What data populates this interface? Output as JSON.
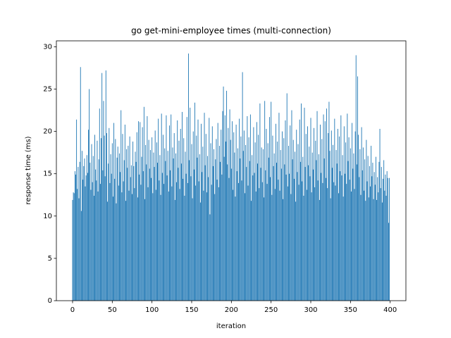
{
  "chart_data": {
    "type": "bar",
    "title": "go get-mini-employee times (multi-connection)",
    "x_label": "iteration",
    "y_label": "response time (ms)",
    "color": "#1f77b4",
    "bar_width": 0.8,
    "grid": false,
    "xlim": [
      -20.4,
      419.8
    ],
    "xticks": [
      0,
      50,
      100,
      150,
      200,
      250,
      300,
      350,
      400
    ],
    "ylim": [
      0,
      30.7
    ],
    "yticks": [
      0,
      5,
      10,
      15,
      20,
      25,
      30
    ],
    "values": [
      11.9,
      12.8,
      12.7,
      15.3,
      14.9,
      21.4,
      13.2,
      15.8,
      12.1,
      16.4,
      27.6,
      10.6,
      17.7,
      14.3,
      15.9,
      16.8,
      13.5,
      14.8,
      17.2,
      15.1,
      20.2,
      25.0,
      16.3,
      13.1,
      18.5,
      14.0,
      17.1,
      12.4,
      19.6,
      15.5,
      14.2,
      18.9,
      12.9,
      16.7,
      22.7,
      13.8,
      19.2,
      26.9,
      15.4,
      23.6,
      19.5,
      14.7,
      27.2,
      19.8,
      11.7,
      16.2,
      20.4,
      13.9,
      17.3,
      15.0,
      18.6,
      12.3,
      21.0,
      14.4,
      19.1,
      11.5,
      16.9,
      18.2,
      13.6,
      17.4,
      15.2,
      22.5,
      12.8,
      19.7,
      14.1,
      16.6,
      20.8,
      11.8,
      17.9,
      15.7,
      18.3,
      13.0,
      19.4,
      14.6,
      16.0,
      12.6,
      18.8,
      15.9,
      13.3,
      17.6,
      16.4,
      19.9,
      12.2,
      21.2,
      14.9,
      21.1,
      13.7,
      17.0,
      20.5,
      15.3,
      22.9,
      12.0,
      18.4,
      16.1,
      21.8,
      13.4,
      19.0,
      15.6,
      17.8,
      14.5,
      19.3,
      12.7,
      17.5,
      15.8,
      20.1,
      13.1,
      18.7,
      16.3,
      21.5,
      14.2,
      17.2,
      12.5,
      22.1,
      15.1,
      19.6,
      13.8,
      18.0,
      16.5,
      21.9,
      14.8,
      17.7,
      12.9,
      20.7,
      15.4,
      22.0,
      13.5,
      18.1,
      16.8,
      19.8,
      11.9,
      17.4,
      14.0,
      21.3,
      15.7,
      18.9,
      13.2,
      20.3,
      16.2,
      22.3,
      14.4,
      19.2,
      12.4,
      17.6,
      15.0,
      21.7,
      13.9,
      29.2,
      16.6,
      22.8,
      14.7,
      18.5,
      12.1,
      20.0,
      15.5,
      23.4,
      13.6,
      19.5,
      16.9,
      21.4,
      14.1,
      17.3,
      11.6,
      20.9,
      15.2,
      18.2,
      13.0,
      22.2,
      16.0,
      19.7,
      12.8,
      17.1,
      14.6,
      21.6,
      10.2,
      18.6,
      13.7,
      20.6,
      15.9,
      17.9,
      12.6,
      16.7,
      19.1,
      14.3,
      21.0,
      13.4,
      18.3,
      16.4,
      20.2,
      14.9,
      22.4,
      25.3,
      17.0,
      21.9,
      18.8,
      24.8,
      16.1,
      20.4,
      14.5,
      22.6,
      19.0,
      15.6,
      21.2,
      13.1,
      19.9,
      17.5,
      12.3,
      20.8,
      15.3,
      18.0,
      13.9,
      21.5,
      16.8,
      19.4,
      14.2,
      27.0,
      17.7,
      20.1,
      12.7,
      18.4,
      15.8,
      21.8,
      13.6,
      19.3,
      16.5,
      22.0,
      11.8,
      17.2,
      14.8,
      20.5,
      15.1,
      18.7,
      12.9,
      21.1,
      16.2,
      19.6,
      13.3,
      23.3,
      15.7,
      18.1,
      14.0,
      17.9,
      12.2,
      23.6,
      15.4,
      20.3,
      13.8,
      18.6,
      16.9,
      21.7,
      14.6,
      23.5,
      12.5,
      19.5,
      15.9,
      17.4,
      13.2,
      20.9,
      16.3,
      18.8,
      14.3,
      22.2,
      13.0,
      17.8,
      15.6,
      20.0,
      12.0,
      19.2,
      16.1,
      21.3,
      14.9,
      24.5,
      13.5,
      18.3,
      15.0,
      20.7,
      12.6,
      22.5,
      16.7,
      19.0,
      14.4,
      17.6,
      11.7,
      20.2,
      15.2,
      18.5,
      13.7,
      21.4,
      16.4,
      23.3,
      14.1,
      17.0,
      12.4,
      22.8,
      15.8,
      19.7,
      13.1,
      20.6,
      16.0,
      18.2,
      14.7,
      21.6,
      12.8,
      17.5,
      15.5,
      20.4,
      13.4,
      18.9,
      16.6,
      22.4,
      14.2,
      17.3,
      11.9,
      20.8,
      15.1,
      19.1,
      13.9,
      22.0,
      16.8,
      21.2,
      14.5,
      22.7,
      13.3,
      19.8,
      23.5,
      17.7,
      12.1,
      20.1,
      15.7,
      18.4,
      14.0,
      21.5,
      13.6,
      17.8,
      16.2,
      20.3,
      12.7,
      19.4,
      15.3,
      21.9,
      14.8,
      17.2,
      12.3,
      20.6,
      15.0,
      18.7,
      13.8,
      22.1,
      16.5,
      19.3,
      14.3,
      18.0,
      12.9,
      21.0,
      15.6,
      17.4,
      13.2,
      20.0,
      29.0,
      16.1,
      26.5,
      19.6,
      14.6,
      17.9,
      12.5,
      20.5,
      15.4,
      18.1,
      13.0,
      16.7,
      11.8,
      19.0,
      14.1,
      17.1,
      12.2,
      15.9,
      13.5,
      18.3,
      14.7,
      16.3,
      12.0,
      15.2,
      13.7,
      17.0,
      11.9,
      14.6,
      12.8,
      16.4,
      20.3,
      13.3,
      15.8,
      11.6,
      14.4,
      16.6,
      13.0,
      14.9,
      12.4,
      15.3,
      14.5,
      9.2,
      14.5
    ]
  }
}
